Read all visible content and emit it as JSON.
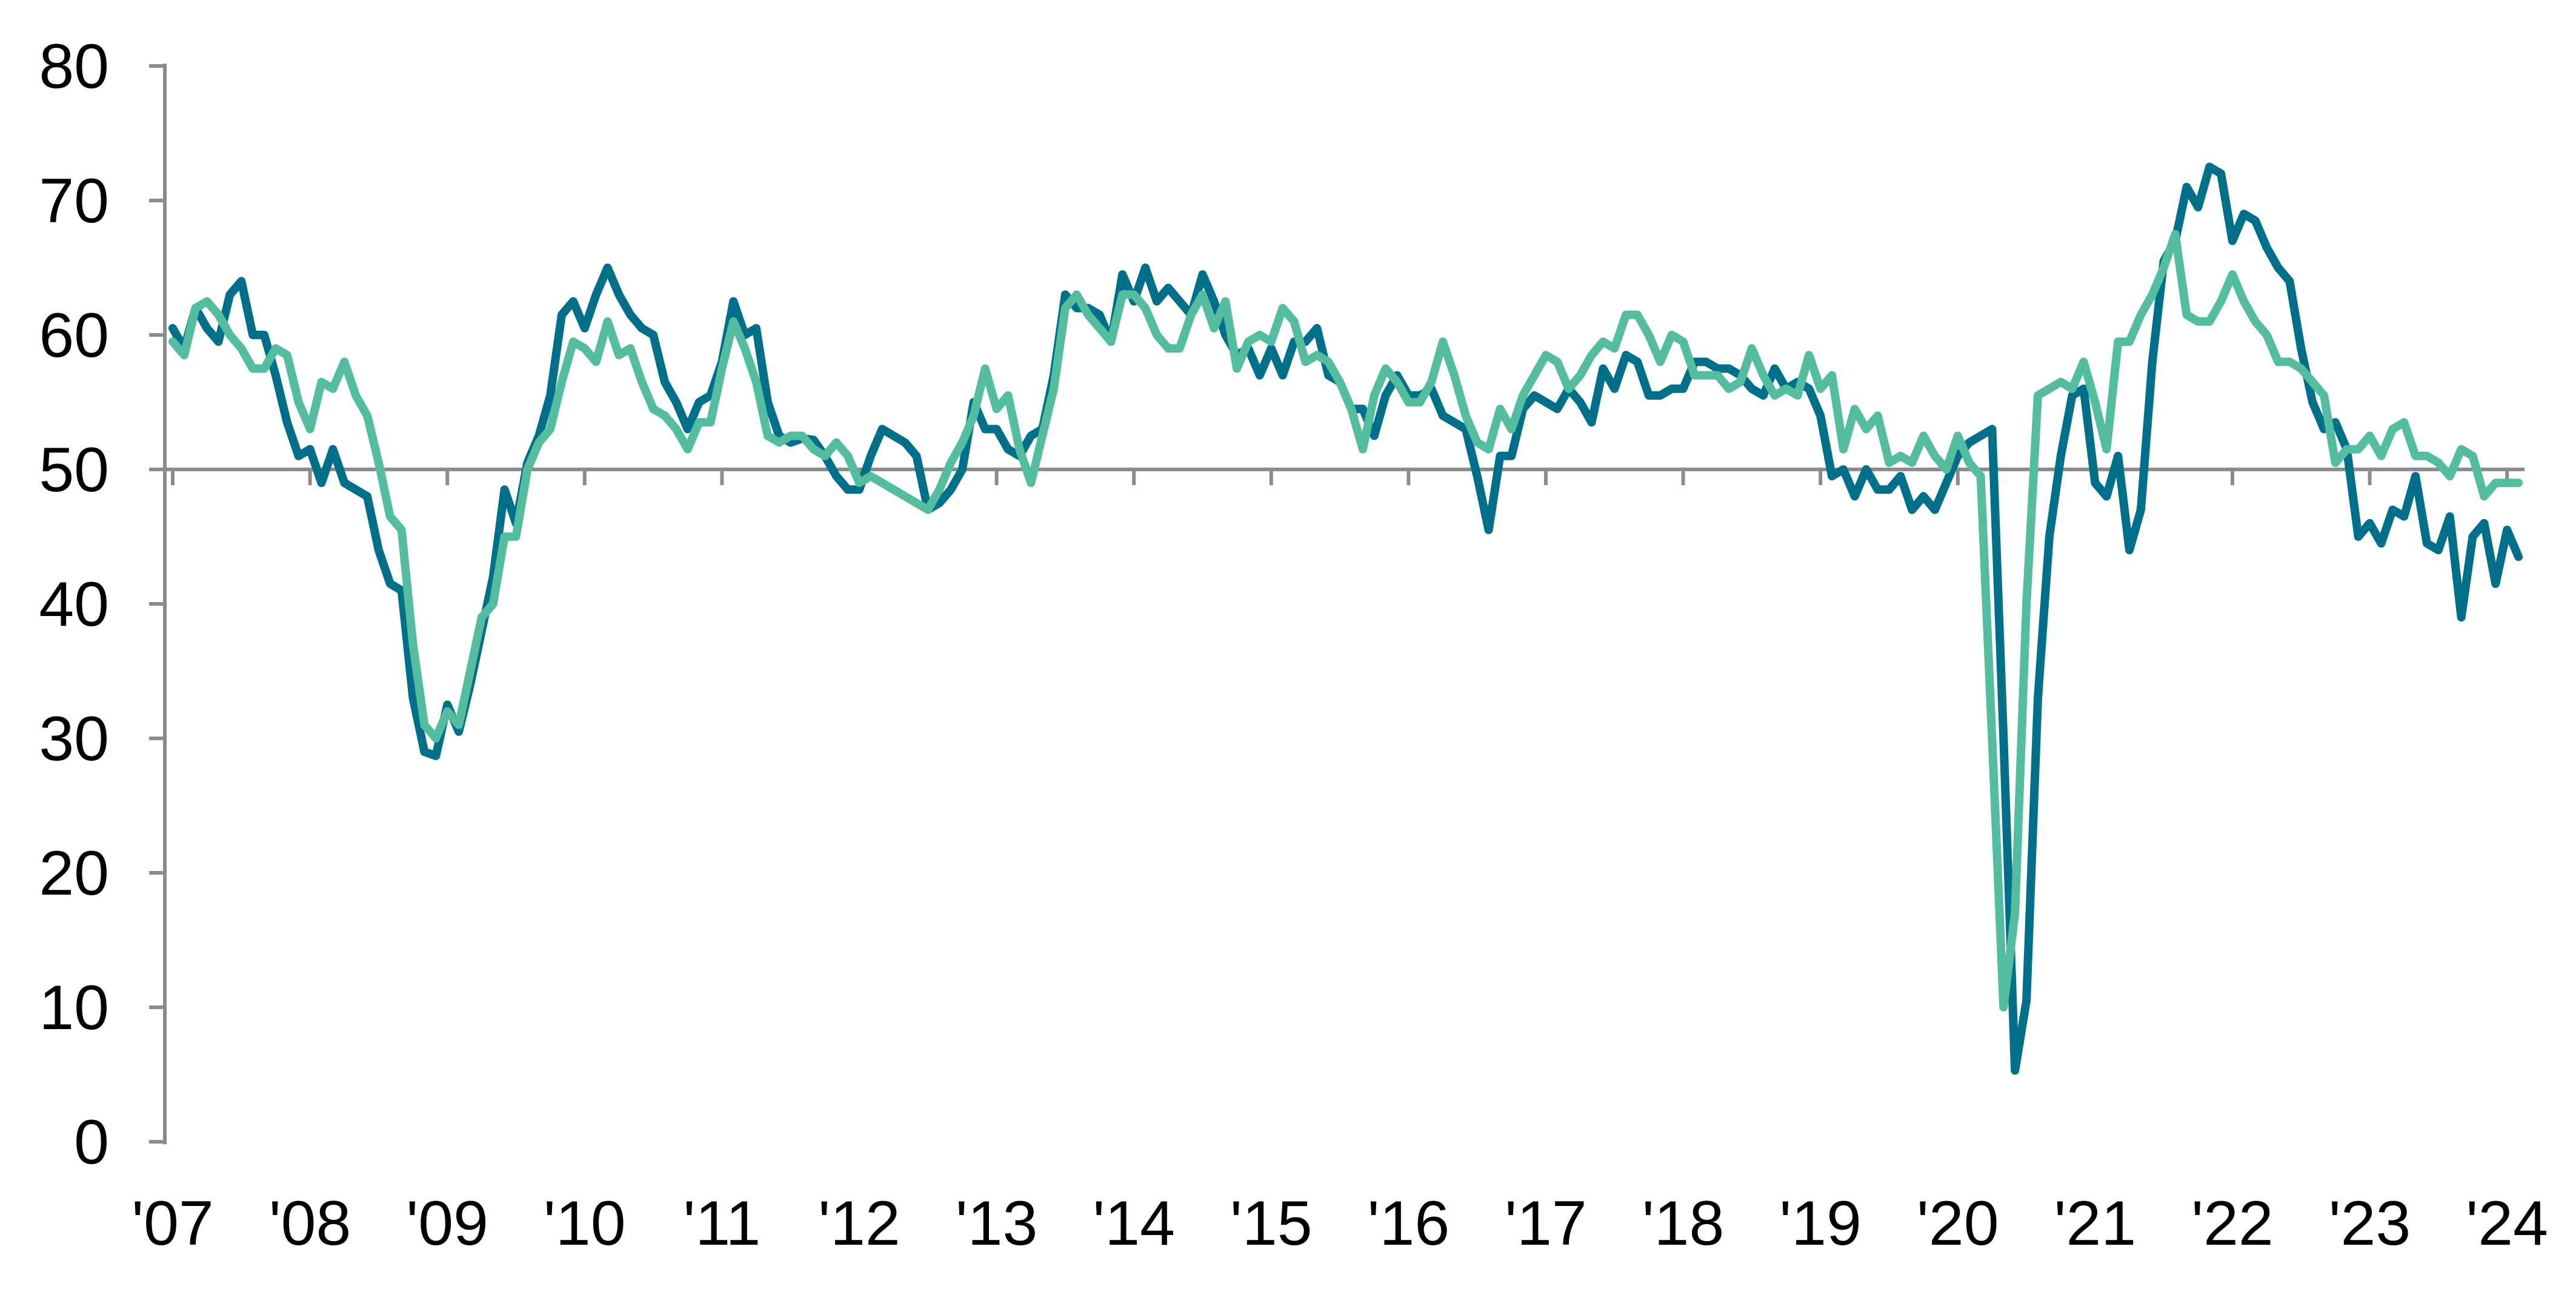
{
  "chart_data": {
    "type": "line",
    "title": "",
    "xlabel": "",
    "ylabel": "",
    "ylim": [
      0,
      80
    ],
    "yticks": [
      "0",
      "10",
      "20",
      "30",
      "40",
      "50",
      "60",
      "70",
      "80"
    ],
    "xticks": [
      "'07",
      "'08",
      "'09",
      "'10",
      "'11",
      "'12",
      "'13",
      "'14",
      "'15",
      "'16",
      "'17",
      "'18",
      "'19",
      "'20",
      "'21",
      "'22",
      "'23",
      "'24"
    ],
    "reference_line": 50,
    "x_start": "2007-01",
    "frequency": "monthly",
    "grid": false,
    "series": [
      {
        "name": "series-dark",
        "color": "#00708a",
        "values": [
          60.5,
          59,
          62,
          60.5,
          59.5,
          63,
          64,
          60,
          60,
          57,
          53.5,
          51,
          51.5,
          49,
          51.5,
          49,
          48.5,
          48,
          44,
          41.5,
          41,
          33,
          29,
          28.7,
          32.5,
          30.5,
          34,
          38,
          42,
          48.5,
          46,
          50.5,
          52.5,
          55.5,
          61.5,
          62.5,
          60.5,
          63,
          65,
          63,
          61.5,
          60.5,
          60,
          56.5,
          55,
          53,
          55,
          55.5,
          58,
          62.5,
          60,
          60.5,
          55,
          52.5,
          52,
          52.3,
          52.2,
          51,
          49.5,
          48.5,
          48.5,
          51,
          53,
          52.5,
          52,
          51,
          47,
          47.5,
          48.5,
          50,
          55,
          53,
          53,
          51.5,
          51,
          52.5,
          53,
          57,
          63,
          62,
          62,
          61.5,
          59.5,
          64.5,
          62.5,
          65,
          62.5,
          63.5,
          62.5,
          61.5,
          64.5,
          62.5,
          60,
          58.5,
          59,
          57,
          59,
          57,
          59.5,
          59.5,
          60.5,
          57,
          56.5,
          54.5,
          54.5,
          52.5,
          55.5,
          57,
          55.5,
          55.5,
          56,
          54,
          53.5,
          53,
          49.5,
          45.5,
          51,
          51,
          54.5,
          55.5,
          55,
          54.5,
          56,
          55,
          53.5,
          57.5,
          56,
          58.5,
          58,
          55.5,
          55.5,
          56,
          56,
          58,
          58,
          57.5,
          57.5,
          57,
          56,
          55.5,
          57.5,
          56,
          56.5,
          56,
          54,
          49.5,
          50,
          48,
          50,
          48.5,
          48.5,
          49.5,
          47,
          48,
          47,
          49,
          51,
          52,
          52.5,
          53,
          30,
          5.3,
          10.5,
          33,
          45,
          51,
          55.5,
          56,
          49,
          48,
          51,
          44,
          47,
          58,
          65.5,
          67,
          71,
          69.5,
          72.5,
          72,
          67,
          69,
          68.5,
          66.5,
          65,
          64,
          59,
          55,
          53,
          53.5,
          51.5,
          45,
          46,
          44.5,
          47,
          46.5,
          49.5,
          44.5,
          44,
          46.5,
          39,
          45,
          46,
          41.5,
          45.5,
          43.5
        ]
      },
      {
        "name": "series-light",
        "color": "#55bd9f",
        "values": [
          59.5,
          58.5,
          62,
          62.5,
          61.5,
          60,
          59,
          57.5,
          57.5,
          59,
          58.5,
          55,
          53,
          56.5,
          56,
          58,
          55.5,
          54,
          50.5,
          46.5,
          45.5,
          37,
          31,
          30,
          32,
          31,
          35,
          39,
          40,
          45,
          45,
          50,
          52,
          53,
          56.5,
          59.5,
          59,
          58,
          61,
          58.5,
          59,
          56.5,
          54.5,
          54,
          53,
          51.5,
          53.5,
          53.5,
          57.5,
          61,
          59,
          56.5,
          52.5,
          52,
          52.5,
          52.5,
          51.5,
          51,
          52,
          51,
          49,
          49.5,
          49,
          48.5,
          48,
          47.5,
          47,
          48.5,
          50.5,
          52,
          54,
          57.5,
          54.5,
          55.5,
          51.5,
          49,
          52.5,
          56,
          62,
          63,
          61.5,
          60.5,
          59.5,
          63,
          63,
          62,
          60,
          59,
          59,
          61.5,
          63,
          60.5,
          62.5,
          57.5,
          59.5,
          60,
          59.5,
          62,
          61,
          58,
          58.5,
          58,
          56.5,
          54.5,
          51.5,
          55.5,
          57.5,
          56.5,
          55,
          55,
          56.5,
          59.5,
          57,
          54,
          52,
          51.5,
          54.5,
          53,
          55.5,
          57,
          58.5,
          58,
          56,
          57,
          58.5,
          59.5,
          59,
          61.5,
          61.5,
          60,
          58,
          60,
          59.5,
          57,
          57,
          57,
          56,
          56.5,
          59,
          57,
          55.5,
          56,
          55.5,
          58.5,
          56,
          57,
          51.5,
          54.5,
          53,
          54,
          50.5,
          51,
          50.5,
          52.5,
          51,
          50,
          52.5,
          50.5,
          49.5,
          30,
          10,
          17,
          40,
          55.5,
          56,
          56.5,
          56,
          58,
          55,
          51.5,
          59.5,
          59.5,
          61.5,
          63,
          65,
          67.5,
          61.5,
          61,
          61,
          62.5,
          64.5,
          62.5,
          61,
          60,
          58,
          58,
          57.5,
          56.5,
          55.5,
          50.5,
          51.5,
          51.5,
          52.5,
          51,
          53,
          53.5,
          51,
          51,
          50.5,
          49.5,
          51.5,
          51,
          48,
          49,
          49,
          49
        ]
      }
    ]
  }
}
